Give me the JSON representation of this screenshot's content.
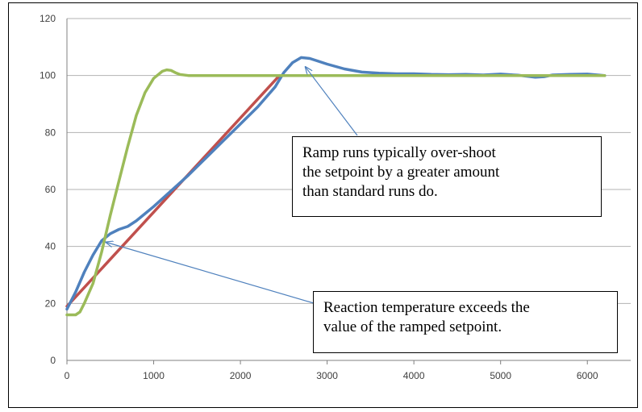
{
  "chart_data": {
    "type": "line",
    "title": "",
    "xlabel": "",
    "ylabel": "",
    "xlim": [
      0,
      6500
    ],
    "ylim": [
      0,
      120
    ],
    "x_ticks": [
      0,
      1000,
      2000,
      3000,
      4000,
      5000,
      6000
    ],
    "y_ticks": [
      0,
      20,
      40,
      60,
      80,
      100,
      120
    ],
    "grid": "horizontal",
    "legend": "none",
    "series": [
      {
        "color": "#4F81BD",
        "x": [
          0,
          100,
          200,
          300,
          400,
          500,
          600,
          700,
          800,
          900,
          1000,
          1200,
          1400,
          1600,
          1800,
          2000,
          2200,
          2400,
          2500,
          2600,
          2700,
          2800,
          2900,
          3000,
          3200,
          3400,
          3600,
          3800,
          4000,
          4200,
          4400,
          4600,
          4800,
          5000,
          5200,
          5400,
          5500,
          5600,
          5800,
          6000,
          6200
        ],
        "y": [
          18,
          24,
          31,
          37,
          42,
          44.5,
          46,
          47,
          49,
          51.5,
          54,
          59.5,
          65,
          71,
          77,
          83,
          89,
          96,
          101,
          104.5,
          106.3,
          106,
          105,
          104,
          102.3,
          101.2,
          100.8,
          100.6,
          100.6,
          100.4,
          100.3,
          100.4,
          100.2,
          100.5,
          100.1,
          99.4,
          99.6,
          100.2,
          100.4,
          100.5,
          100
        ]
      },
      {
        "color": "#C0504D",
        "x": [
          0,
          2450
        ],
        "y": [
          19,
          100
        ]
      },
      {
        "color": "#9BBB59",
        "x": [
          0,
          100,
          150,
          200,
          300,
          400,
          500,
          600,
          700,
          800,
          900,
          1000,
          1100,
          1150,
          1200,
          1250,
          1300,
          1400,
          1600,
          2000,
          3000,
          4000,
          5000,
          6000,
          6200
        ],
        "y": [
          16,
          16,
          17,
          20,
          27,
          38,
          51,
          63,
          75,
          86,
          94,
          99,
          101.5,
          102,
          101.8,
          101,
          100.4,
          100,
          100,
          100,
          100,
          100,
          100,
          100,
          100
        ]
      }
    ],
    "annotations": [
      {
        "lines": [
          "Ramp runs typically over-shoot",
          "the setpoint by a greater amount",
          "than standard runs do."
        ],
        "target": [
          2750,
          103
        ]
      },
      {
        "lines": [
          "Reaction temperature exceeds the",
          "value of the ramped setpoint."
        ],
        "target": [
          450,
          41.5
        ]
      }
    ]
  }
}
